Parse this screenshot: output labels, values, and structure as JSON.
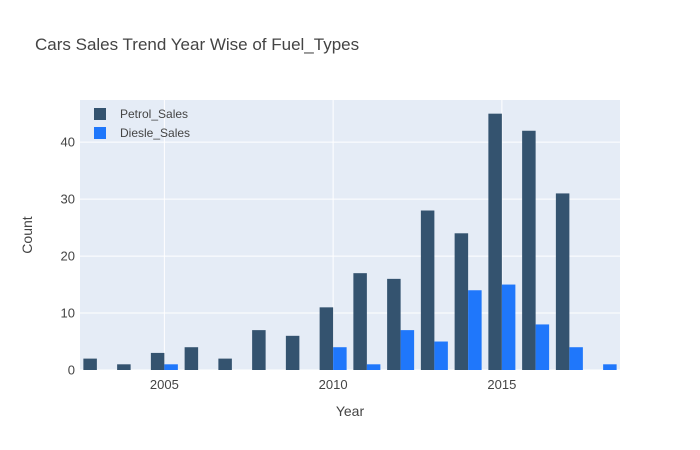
{
  "chart_data": {
    "type": "bar",
    "title": "Cars Sales Trend Year Wise of Fuel_Types",
    "xlabel": "Year",
    "ylabel": "Count",
    "x": [
      2003,
      2004,
      2005,
      2006,
      2007,
      2008,
      2009,
      2010,
      2011,
      2012,
      2013,
      2014,
      2015,
      2016,
      2017,
      2018
    ],
    "xlim": [
      2002.5,
      2018.5
    ],
    "ylim": [
      0,
      47.4
    ],
    "x_ticks": [
      "2005",
      "2010",
      "2015"
    ],
    "y_ticks": [
      "0",
      "10",
      "20",
      "30",
      "40"
    ],
    "grid": true,
    "legend_position": "top-left",
    "series": [
      {
        "name": "Petrol_Sales",
        "color": "#34536f",
        "values": [
          2,
          1,
          3,
          4,
          2,
          7,
          6,
          11,
          17,
          16,
          28,
          24,
          45,
          42,
          31,
          0
        ]
      },
      {
        "name": "Diesle_Sales",
        "color": "#1f77fb",
        "values": [
          0,
          0,
          1,
          0,
          0,
          0,
          0,
          4,
          1,
          7,
          5,
          14,
          15,
          8,
          4,
          1
        ]
      }
    ],
    "colors": {
      "plot_background": "#e5ecf6",
      "grid": "#ffffff",
      "text": "#444444"
    }
  }
}
